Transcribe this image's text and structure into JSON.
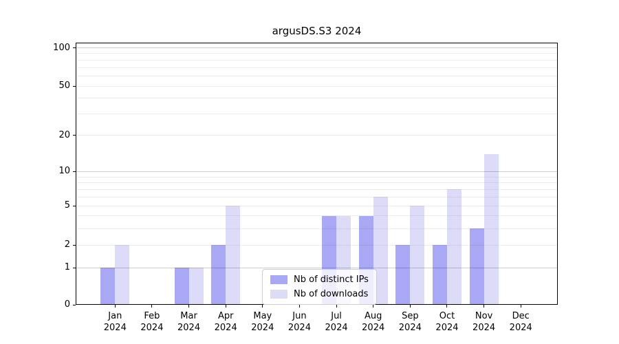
{
  "chart_data": {
    "type": "bar",
    "title": "argusDS.S3 2024",
    "categories": [
      "Jan",
      "Feb",
      "Mar",
      "Apr",
      "May",
      "Jun",
      "Jul",
      "Aug",
      "Sep",
      "Oct",
      "Nov",
      "Dec"
    ],
    "year": "2024",
    "series": [
      {
        "name": "Nb of distinct IPs",
        "color": "#a8a8f5",
        "values": [
          1,
          0,
          1,
          2,
          0,
          0,
          4,
          4,
          2,
          2,
          3,
          0
        ]
      },
      {
        "name": "Nb of downloads",
        "color": "#dcdcf8",
        "values": [
          2,
          0,
          1,
          5,
          0,
          0,
          4,
          6,
          5,
          7,
          14,
          0
        ]
      }
    ],
    "yticks": [
      0,
      1,
      2,
      5,
      10,
      20,
      50,
      100
    ],
    "yaxis_scale": "log10(1+x)",
    "ylim": [
      0,
      110
    ],
    "grid": true,
    "legend_position": "lower center"
  }
}
